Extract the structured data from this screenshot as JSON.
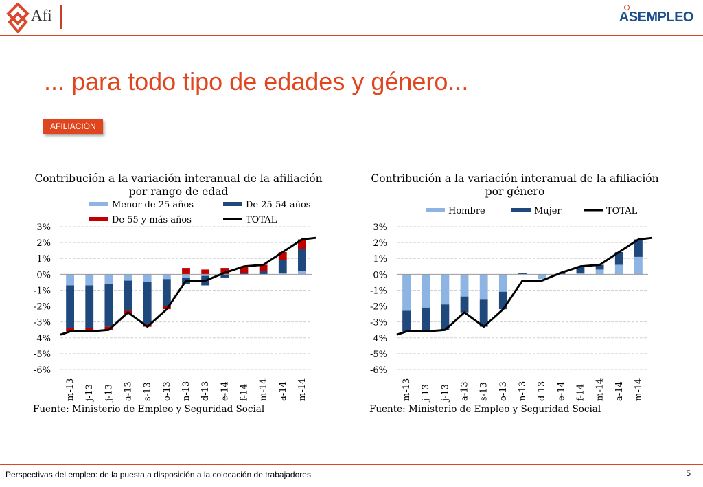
{
  "header": {
    "afi_logo_text": "Afi",
    "asempleo_logo_text": "ASEMPLEO",
    "brand_color": "#d9492b"
  },
  "page_title": "... para todo tipo de edades y género...",
  "tag_label": "AFILIACIÓN",
  "footer": {
    "text": "Perspectivas del empleo: de la puesta a disposición a la colocación de trabajadores",
    "page_number": "5"
  },
  "chart_data": [
    {
      "type": "bar",
      "stacked": true,
      "title": "Contribución a la variación interanual de la afiliación por rango de edad",
      "title_lines": [
        "Contribución a la variación interanual de la afiliación",
        "por rango de edad"
      ],
      "source": "Fuente:  Ministerio de Empleo y Seguridad Social",
      "categories": [
        "m-13",
        "j-13",
        "j-13",
        "a-13",
        "s-13",
        "o-13",
        "n-13",
        "d-13",
        "e-14",
        "f-14",
        "m-14",
        "a-14",
        "m-14"
      ],
      "ylim": [
        -6,
        3
      ],
      "yticks": [
        3,
        2,
        1,
        0,
        -1,
        -2,
        -3,
        -4,
        -5,
        -6
      ],
      "ytick_labels": [
        "3%",
        "2%",
        "1%",
        "0%",
        "-1%",
        "-2%",
        "-3%",
        "-4%",
        "-5%",
        "-6%"
      ],
      "grid": true,
      "legend_position": "top",
      "series": [
        {
          "name": "Menor de 25 años",
          "color": "#8db4e2",
          "kind": "bar",
          "values": [
            -0.7,
            -0.7,
            -0.6,
            -0.4,
            -0.5,
            -0.3,
            -0.2,
            -0.1,
            0.0,
            0.0,
            0.0,
            0.1,
            0.2
          ]
        },
        {
          "name": "De 25-54 años",
          "color": "#1f497d",
          "kind": "bar",
          "values": [
            -2.7,
            -2.7,
            -2.7,
            -1.9,
            -2.6,
            -1.7,
            -0.4,
            -0.6,
            -0.2,
            0.1,
            0.2,
            0.8,
            1.4
          ]
        },
        {
          "name": "De 55 y más años",
          "color": "#c00000",
          "kind": "bar",
          "values": [
            -0.2,
            -0.2,
            -0.2,
            -0.2,
            -0.2,
            -0.2,
            0.4,
            0.3,
            0.4,
            0.4,
            0.4,
            0.5,
            0.6
          ]
        },
        {
          "name": "TOTAL",
          "color": "#000000",
          "kind": "line",
          "values": [
            -3.6,
            -3.6,
            -3.5,
            -2.4,
            -3.3,
            -2.2,
            -0.4,
            -0.4,
            0.1,
            0.5,
            0.6,
            1.4,
            2.2
          ],
          "line_start_value": -3.8,
          "line_end_value": 2.3
        }
      ]
    },
    {
      "type": "bar",
      "stacked": true,
      "title": "Contribución a la variación interanual de la afiliación por género",
      "title_lines": [
        "Contribución a la variación interanual de la afiliación",
        "por género"
      ],
      "source": "Fuente:  Ministerio de Empleo y Seguridad Social",
      "categories": [
        "m-13",
        "j-13",
        "j-13",
        "a-13",
        "s-13",
        "o-13",
        "n-13",
        "d-13",
        "e-14",
        "f-14",
        "m-14",
        "a-14",
        "m-14"
      ],
      "ylim": [
        -6,
        3
      ],
      "yticks": [
        3,
        2,
        1,
        0,
        -1,
        -2,
        -3,
        -4,
        -5,
        -6
      ],
      "ytick_labels": [
        "3%",
        "2%",
        "1%",
        "0%",
        "-1%",
        "-2%",
        "-3%",
        "-4%",
        "-5%",
        "-6%"
      ],
      "grid": true,
      "legend_position": "top",
      "series": [
        {
          "name": "Hombre",
          "color": "#8db4e2",
          "kind": "bar",
          "values": [
            -2.3,
            -2.1,
            -1.9,
            -1.4,
            -1.6,
            -1.1,
            0.0,
            -0.3,
            0.0,
            0.1,
            0.3,
            0.6,
            1.1
          ]
        },
        {
          "name": "Mujer",
          "color": "#1f497d",
          "kind": "bar",
          "values": [
            -1.3,
            -1.5,
            -1.6,
            -1.0,
            -1.7,
            -1.1,
            0.1,
            0.0,
            0.1,
            0.4,
            0.3,
            0.8,
            1.1
          ]
        },
        {
          "name": "TOTAL",
          "color": "#000000",
          "kind": "line",
          "values": [
            -3.6,
            -3.6,
            -3.5,
            -2.4,
            -3.3,
            -2.2,
            -0.4,
            -0.4,
            0.1,
            0.5,
            0.6,
            1.4,
            2.2
          ],
          "line_start_value": -3.8,
          "line_end_value": 2.3
        }
      ]
    }
  ]
}
